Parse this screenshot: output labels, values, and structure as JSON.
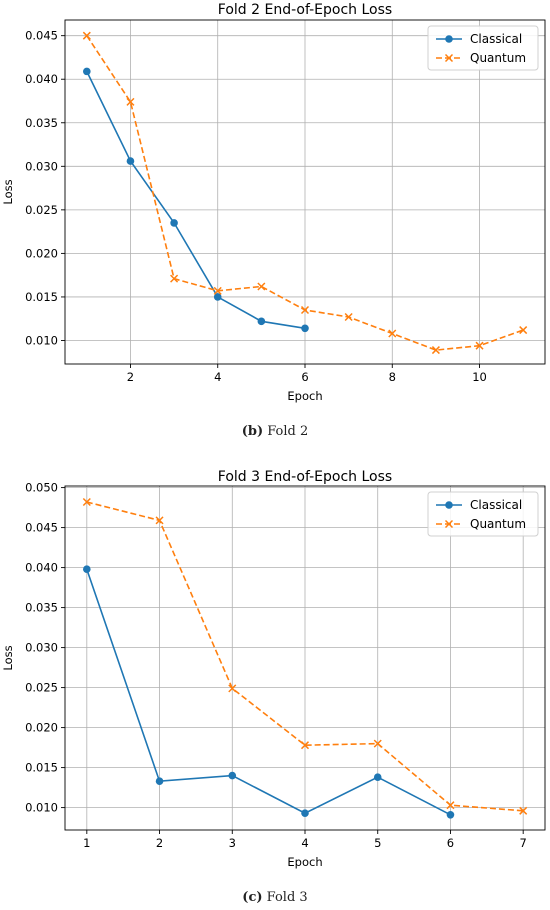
{
  "chart_data": [
    {
      "type": "line",
      "title": "Fold 2 End-of-Epoch Loss",
      "xlabel": "Epoch",
      "ylabel": "Loss",
      "xlim": [
        0.5,
        11.5
      ],
      "ylim": [
        0.0073,
        0.0468
      ],
      "xticks": [
        2,
        4,
        6,
        8,
        10
      ],
      "yticks": [
        0.01,
        0.015,
        0.02,
        0.025,
        0.03,
        0.035,
        0.04,
        0.045
      ],
      "ytick_labels": [
        "0.010",
        "0.015",
        "0.020",
        "0.025",
        "0.030",
        "0.035",
        "0.040",
        "0.045"
      ],
      "grid": true,
      "legend_position": "top-right",
      "series": [
        {
          "name": "Classical",
          "color": "#1f77b4",
          "style": "solid",
          "marker": "circle",
          "x": [
            1,
            2,
            3,
            4,
            5,
            6
          ],
          "y": [
            0.0409,
            0.0306,
            0.0235,
            0.015,
            0.0122,
            0.0114
          ]
        },
        {
          "name": "Quantum",
          "color": "#ff7f0e",
          "style": "dashed",
          "marker": "x",
          "x": [
            1,
            2,
            3,
            4,
            5,
            6,
            7,
            8,
            9,
            10,
            11
          ],
          "y": [
            0.045,
            0.0374,
            0.0171,
            0.0157,
            0.0162,
            0.0135,
            0.0127,
            0.0108,
            0.0089,
            0.0094,
            0.0112
          ]
        }
      ]
    },
    {
      "type": "line",
      "title": "Fold 3 End-of-Epoch Loss",
      "xlabel": "Epoch",
      "ylabel": "Loss",
      "xlim": [
        0.7,
        7.3
      ],
      "ylim": [
        0.0072,
        0.0502
      ],
      "xticks": [
        1,
        2,
        3,
        4,
        5,
        6,
        7
      ],
      "yticks": [
        0.01,
        0.015,
        0.02,
        0.025,
        0.03,
        0.035,
        0.04,
        0.045,
        0.05
      ],
      "ytick_labels": [
        "0.010",
        "0.015",
        "0.020",
        "0.025",
        "0.030",
        "0.035",
        "0.040",
        "0.045",
        "0.050"
      ],
      "grid": true,
      "legend_position": "top-right",
      "series": [
        {
          "name": "Classical",
          "color": "#1f77b4",
          "style": "solid",
          "marker": "circle",
          "x": [
            1,
            2,
            3,
            4,
            5,
            6
          ],
          "y": [
            0.0398,
            0.0133,
            0.014,
            0.0093,
            0.0138,
            0.0091
          ]
        },
        {
          "name": "Quantum",
          "color": "#ff7f0e",
          "style": "dashed",
          "marker": "x",
          "x": [
            1,
            2,
            3,
            4,
            5,
            6,
            7
          ],
          "y": [
            0.0482,
            0.0459,
            0.0249,
            0.0178,
            0.018,
            0.0103,
            0.0096
          ]
        }
      ]
    }
  ],
  "captions": [
    {
      "tag": "(b)",
      "text": "Fold 2"
    },
    {
      "tag": "(c)",
      "text": "Fold 3"
    }
  ]
}
